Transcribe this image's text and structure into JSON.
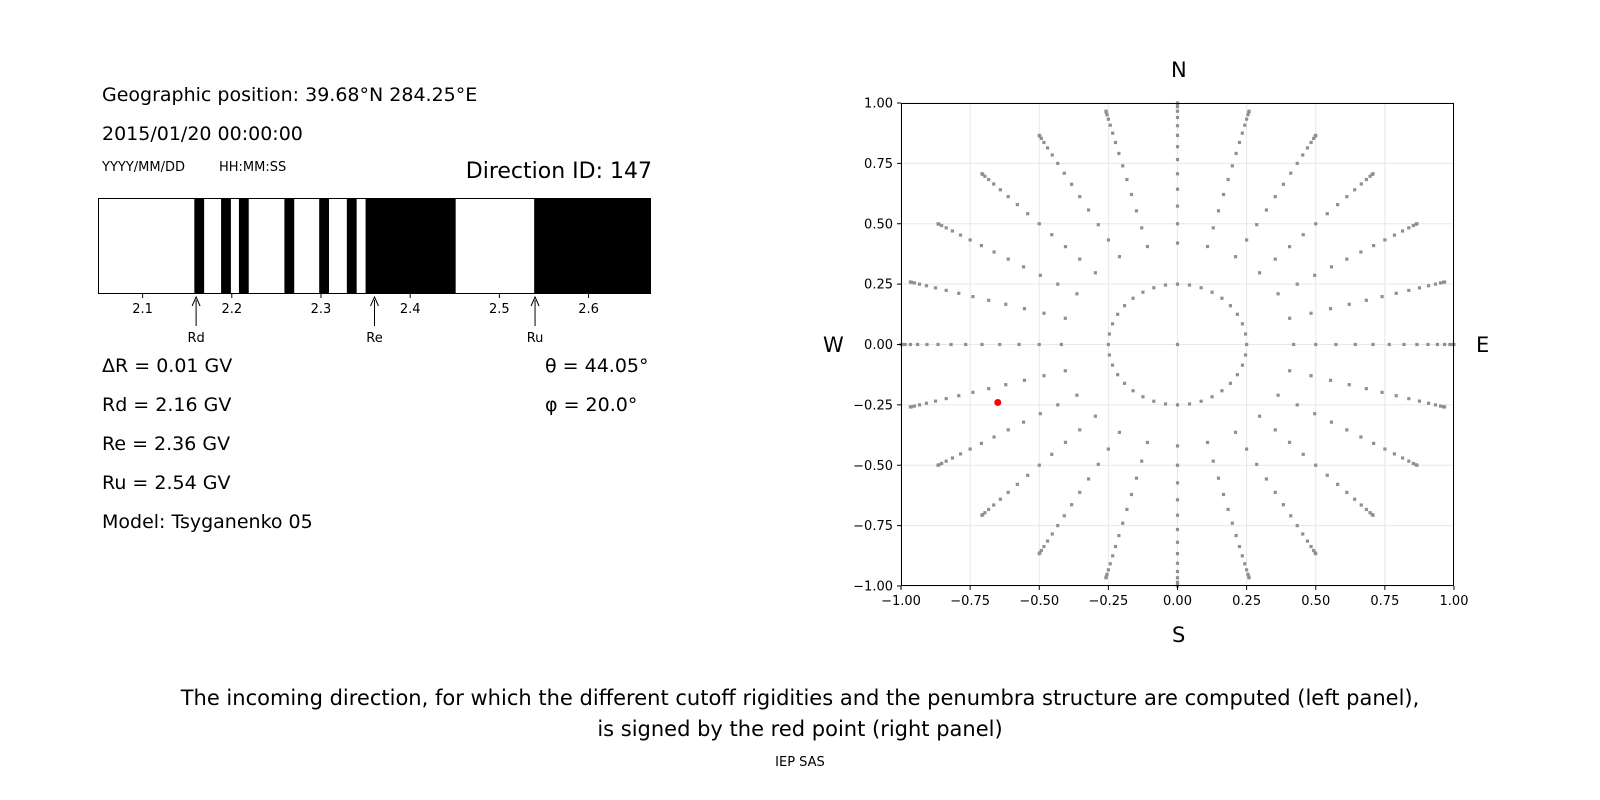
{
  "info": {
    "geo_position": "Geographic position: 39.68°N 284.25°E",
    "datetime": "2015/01/20 00:00:00",
    "date_format": "YYYY/MM/DD",
    "time_format": "HH:MM:SS",
    "direction_id": "Direction ID: 147"
  },
  "results": {
    "delta_r": "ΔR = 0.01 GV",
    "rd": "Rd = 2.16 GV",
    "re": "Re = 2.36 GV",
    "ru": "Ru = 2.54 GV",
    "model": "Model: Tsyganenko 05",
    "theta": "θ = 44.05°",
    "phi": "φ = 20.0°"
  },
  "compass": {
    "north": "N",
    "south": "S",
    "west": "W",
    "east": "E"
  },
  "caption": {
    "line1": "The incoming direction, for which the different cutoff rigidities and the penumbra structure are computed (left panel),",
    "line2": "is signed by the red point (right panel)"
  },
  "footer": "IEP SAS",
  "colors": {
    "forbidden": "#000000",
    "allowed": "#ffffff",
    "grid_point": "#909090",
    "selected_point": "#ff0000"
  },
  "chart_data": [
    {
      "type": "penumbra-bar",
      "title": "",
      "xlabel": "",
      "ylabel": "",
      "xlim": [
        2.05,
        2.67
      ],
      "x_ticks": [
        2.1,
        2.2,
        2.3,
        2.4,
        2.5,
        2.6
      ],
      "x_tick_labels": [
        "2.1",
        "2.2",
        "2.3",
        "2.4",
        "2.5",
        "2.6"
      ],
      "forbidden_intervals": [
        [
          2.158,
          2.169
        ],
        [
          2.188,
          2.199
        ],
        [
          2.208,
          2.219
        ],
        [
          2.259,
          2.27
        ],
        [
          2.298,
          2.309
        ],
        [
          2.329,
          2.34
        ],
        [
          2.35,
          2.451
        ],
        [
          2.539,
          2.67
        ]
      ],
      "markers": [
        {
          "label": "Rd",
          "x": 2.16
        },
        {
          "label": "Re",
          "x": 2.36
        },
        {
          "label": "Ru",
          "x": 2.54
        }
      ]
    },
    {
      "type": "scatter",
      "title": "",
      "xlabel": "",
      "ylabel": "",
      "xlim": [
        -1.0,
        1.0
      ],
      "ylim": [
        -1.0,
        1.0
      ],
      "x_ticks": [
        -1.0,
        -0.75,
        -0.5,
        -0.25,
        0.0,
        0.25,
        0.5,
        0.75,
        1.0
      ],
      "x_tick_labels": [
        "−1.00",
        "−0.75",
        "−0.50",
        "−0.25",
        "0.00",
        "0.25",
        "0.50",
        "0.75",
        "1.00"
      ],
      "y_ticks": [
        -1.0,
        -0.75,
        -0.5,
        -0.25,
        0.0,
        0.25,
        0.5,
        0.75,
        1.0
      ],
      "y_tick_labels": [
        "−1.00",
        "−0.75",
        "−0.50",
        "−0.25",
        "0.00",
        "0.25",
        "0.50",
        "0.75",
        "1.00"
      ],
      "grid": true,
      "grid_pattern": {
        "center": [
          0.0,
          0.0
        ],
        "rings": [
          0.25,
          0.42,
          0.5,
          0.573,
          0.643,
          0.707,
          0.766,
          0.819,
          0.866,
          0.906,
          0.94,
          0.966,
          0.985,
          0.996,
          1.0
        ],
        "spokes": 24,
        "inner_ring_points": 36
      },
      "selected_point": {
        "x": -0.65,
        "y": -0.24
      }
    }
  ]
}
